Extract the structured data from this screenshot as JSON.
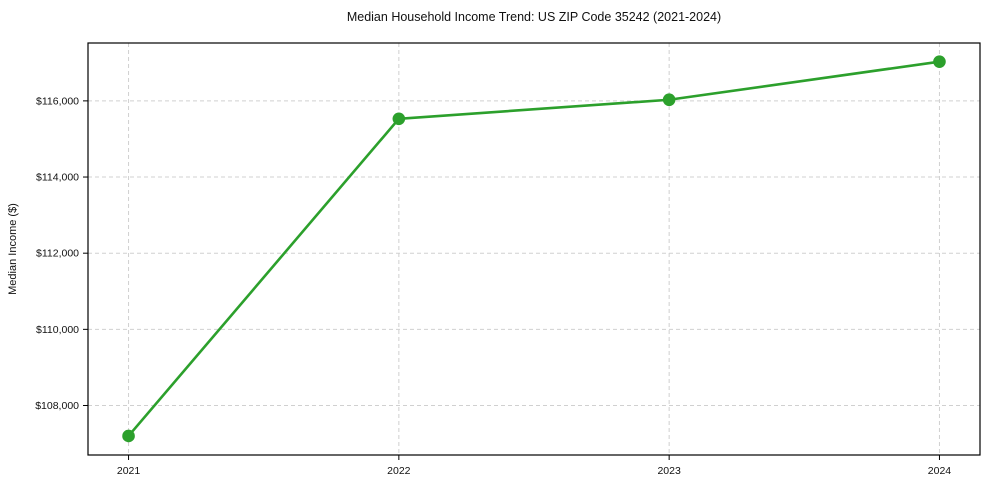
{
  "chart_data": {
    "type": "line",
    "title": "Median Household Income Trend: US ZIP Code 35242 (2021-2024)",
    "xlabel": "",
    "ylabel": "Median Income ($)",
    "categories": [
      "2021",
      "2022",
      "2023",
      "2024"
    ],
    "x": [
      2021,
      2022,
      2023,
      2024
    ],
    "series": [
      {
        "name": "median-household-income",
        "values": [
          107200,
          115530,
          116030,
          117030
        ],
        "color": "#2ca02c",
        "marker": "circle"
      }
    ],
    "xlim": [
      2020.85,
      2024.15
    ],
    "ylim": [
      106700,
      117520
    ],
    "yticks": [
      108000,
      110000,
      112000,
      114000,
      116000
    ],
    "ytick_labels": [
      "$108,000",
      "$110,000",
      "$112,000",
      "$114,000",
      "$116,000"
    ],
    "grid": "both-dashed",
    "legend": "none"
  },
  "colors": {
    "line": "#2ca02c",
    "grid": "#d0d0d0",
    "axis": "#000000",
    "text": "#111111",
    "background": "#ffffff"
  }
}
